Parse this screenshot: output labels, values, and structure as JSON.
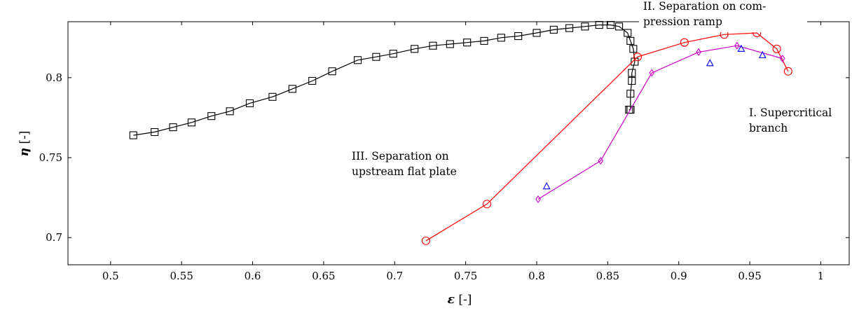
{
  "chart_data": {
    "type": "line",
    "xlabel_symbol": "ε",
    "xlabel_unit": " [-]",
    "ylabel_symbol": "η",
    "ylabel_unit": " [-]",
    "xlim": [
      0.47,
      1.02
    ],
    "ylim": [
      0.683,
      0.835
    ],
    "xticks": [
      0.5,
      0.55,
      0.6,
      0.65,
      0.7,
      0.75,
      0.8,
      0.85,
      0.9,
      0.95,
      1
    ],
    "xtick_labels": [
      "0.5",
      "0.55",
      "0.6",
      "0.65",
      "0.7",
      "0.75",
      "0.8",
      "0.85",
      "0.9",
      "0.95",
      "1"
    ],
    "yticks": [
      0.7,
      0.75,
      0.8
    ],
    "ytick_labels": [
      "0.7",
      "0.75",
      "0.8"
    ],
    "grid": false,
    "annotations": [
      {
        "lines": [
          "I. Supercritical",
          "branch"
        ]
      },
      {
        "lines": [
          "II. Separation on com-",
          "pression ramp"
        ]
      },
      {
        "lines": [
          "III. Separation on",
          "upstream flat plate"
        ]
      }
    ],
    "series": [
      {
        "color": "#000000",
        "marker": "square",
        "connected": true,
        "x": [
          0.516,
          0.531,
          0.544,
          0.557,
          0.571,
          0.584,
          0.598,
          0.614,
          0.628,
          0.642,
          0.656,
          0.674,
          0.687,
          0.699,
          0.714,
          0.727,
          0.739,
          0.751,
          0.763,
          0.775,
          0.787,
          0.8,
          0.812,
          0.823,
          0.834,
          0.844,
          0.852,
          0.858,
          0.864,
          0.866,
          0.868,
          0.869,
          0.867,
          0.867,
          0.866,
          0.866,
          0.866,
          0.865
        ],
        "y": [
          0.764,
          0.766,
          0.769,
          0.772,
          0.776,
          0.779,
          0.784,
          0.788,
          0.793,
          0.798,
          0.804,
          0.811,
          0.813,
          0.815,
          0.818,
          0.82,
          0.821,
          0.822,
          0.823,
          0.825,
          0.826,
          0.828,
          0.83,
          0.831,
          0.832,
          0.833,
          0.833,
          0.832,
          0.828,
          0.823,
          0.818,
          0.81,
          0.803,
          0.798,
          0.79,
          0.78,
          0.78,
          0.78
        ]
      },
      {
        "color": "#ff0000",
        "marker": "circle",
        "connected": true,
        "x": [
          0.722,
          0.765,
          0.871,
          0.904,
          0.932,
          0.955,
          0.969,
          0.977
        ],
        "y": [
          0.698,
          0.721,
          0.813,
          0.822,
          0.827,
          0.828,
          0.818,
          0.804
        ]
      },
      {
        "color": "#cc00cc",
        "marker": "diamond",
        "connected": true,
        "x": [
          0.801,
          0.845,
          0.881,
          0.914,
          0.941,
          0.973
        ],
        "y": [
          0.724,
          0.748,
          0.803,
          0.816,
          0.82,
          0.812
        ]
      },
      {
        "color": "#0000ff",
        "marker": "triangle",
        "connected": false,
        "x": [
          0.807,
          0.922,
          0.944,
          0.959
        ],
        "y": [
          0.732,
          0.809,
          0.818,
          0.814
        ]
      }
    ]
  }
}
